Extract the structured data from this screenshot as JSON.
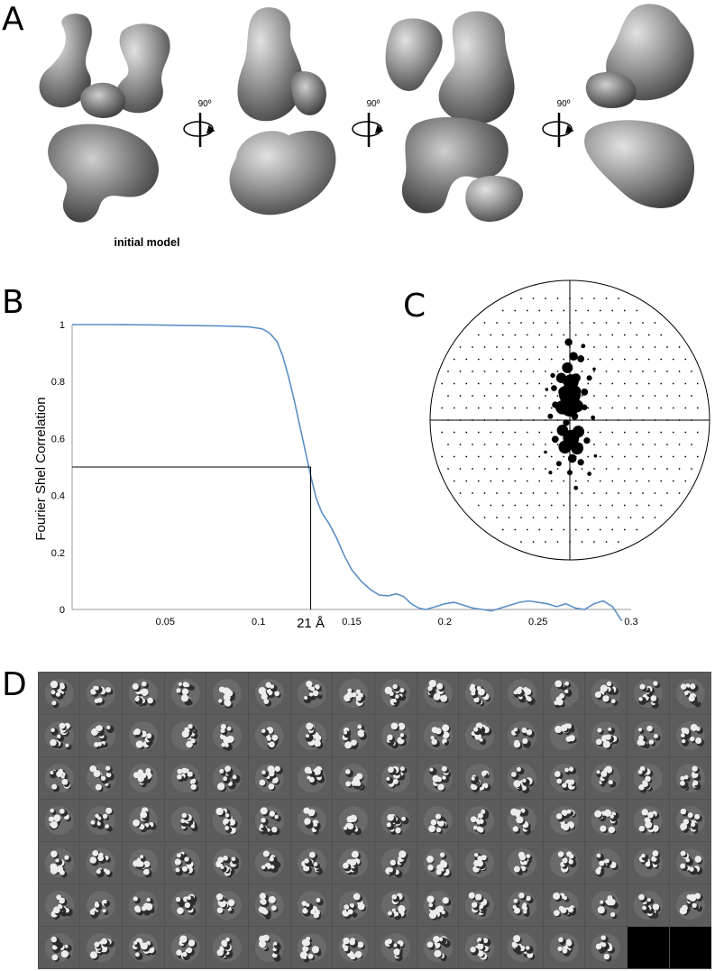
{
  "figure": {
    "panel_labels": [
      "A",
      "B",
      "C",
      "D"
    ],
    "panel_a": {
      "caption": "initial model",
      "rotation_labels": [
        "90º",
        "90º",
        "90º"
      ]
    },
    "panel_d": {
      "rows": 7,
      "columns": 16,
      "filled_in_last_row": 14
    }
  },
  "chart_data": [
    {
      "type": "line",
      "panel": "B",
      "title": "",
      "xlabel": "",
      "ylabel": "Fourier Shel Correlation",
      "xlim": [
        0,
        0.3
      ],
      "ylim": [
        0,
        1
      ],
      "x_ticks": [
        "0.05",
        "0.1",
        "0.15",
        "0.2",
        "0.25",
        "0.3"
      ],
      "y_ticks": [
        "0",
        "0.2",
        "0.4",
        "0.6",
        "0.8",
        "1"
      ],
      "grid": false,
      "color": "#5b8fc7",
      "annotation": {
        "text": "21 Å",
        "x": 0.128,
        "y": 0.5
      },
      "series": [
        {
          "x": [
            0,
            0.02,
            0.04,
            0.06,
            0.08,
            0.095,
            0.102,
            0.106,
            0.11,
            0.113,
            0.116,
            0.119,
            0.122,
            0.125,
            0.128,
            0.131,
            0.134,
            0.138,
            0.142,
            0.146,
            0.15,
            0.155,
            0.16,
            0.165,
            0.17,
            0.174,
            0.178,
            0.182,
            0.186,
            0.19,
            0.195,
            0.2,
            0.205,
            0.21,
            0.215,
            0.22,
            0.225,
            0.23,
            0.235,
            0.24,
            0.245,
            0.25,
            0.255,
            0.26,
            0.265,
            0.27,
            0.275,
            0.28,
            0.285,
            0.29,
            0.295
          ],
          "values": [
            1.0,
            1.0,
            0.999,
            0.997,
            0.995,
            0.992,
            0.985,
            0.97,
            0.94,
            0.89,
            0.82,
            0.74,
            0.65,
            0.56,
            0.47,
            0.39,
            0.34,
            0.3,
            0.25,
            0.19,
            0.14,
            0.1,
            0.07,
            0.05,
            0.048,
            0.055,
            0.045,
            0.02,
            0.005,
            0.0,
            0.01,
            0.02,
            0.025,
            0.015,
            0.005,
            0.0,
            -0.005,
            0.005,
            0.015,
            0.025,
            0.03,
            0.025,
            0.02,
            0.01,
            0.02,
            0.005,
            0.0,
            0.02,
            0.03,
            0.01,
            -0.04
          ]
        }
      ]
    },
    {
      "type": "scatter",
      "panel": "C",
      "title": "",
      "grid": false,
      "note": "angular distribution plot; size = relative number of particles per orientation",
      "points": [
        {
          "x": 0,
          "y": 2,
          "s": 4.0
        },
        {
          "x": 0,
          "y": 1,
          "s": 3.4
        },
        {
          "x": -0.6,
          "y": 1,
          "s": 2.6
        },
        {
          "x": 0.6,
          "y": 1.1,
          "s": 2.3
        },
        {
          "x": -0.5,
          "y": 2.2,
          "s": 2.0
        },
        {
          "x": 0.5,
          "y": 2.3,
          "s": 1.8
        },
        {
          "x": 0.1,
          "y": 3,
          "s": 2.8
        },
        {
          "x": -0.2,
          "y": 4.1,
          "s": 2.0
        },
        {
          "x": 0.5,
          "y": 3.3,
          "s": 1.7
        },
        {
          "x": -0.7,
          "y": 3.3,
          "s": 1.9
        },
        {
          "x": 0.3,
          "y": 5,
          "s": 1.6
        },
        {
          "x": -0.1,
          "y": 6.1,
          "s": 1.4
        },
        {
          "x": 1.2,
          "y": 2.2,
          "s": 1.3
        },
        {
          "x": -1.2,
          "y": 1.2,
          "s": 1.2
        },
        {
          "x": 1.2,
          "y": 1,
          "s": 1.1
        },
        {
          "x": 1.6,
          "y": 3.3,
          "s": 1.0
        },
        {
          "x": 0.9,
          "y": 4.8,
          "s": 1.3
        },
        {
          "x": 1.1,
          "y": 5.8,
          "s": 0.8
        },
        {
          "x": 2,
          "y": 4,
          "s": 0.6
        },
        {
          "x": -1.3,
          "y": 2.5,
          "s": 1.1
        },
        {
          "x": -1.4,
          "y": 3.5,
          "s": 0.9
        },
        {
          "x": -1.9,
          "y": 2.4,
          "s": 0.6
        },
        {
          "x": 0.1,
          "y": -1.4,
          "s": 3.0
        },
        {
          "x": 0.7,
          "y": -0.9,
          "s": 2.2
        },
        {
          "x": -0.6,
          "y": -0.8,
          "s": 2.1
        },
        {
          "x": 0.6,
          "y": -2.2,
          "s": 2.3
        },
        {
          "x": -0.4,
          "y": -2.1,
          "s": 2.4
        },
        {
          "x": 0.2,
          "y": -3,
          "s": 1.6
        },
        {
          "x": -1.2,
          "y": -1.5,
          "s": 1.3
        },
        {
          "x": 1.4,
          "y": -1.6,
          "s": 1.2
        },
        {
          "x": 0.9,
          "y": -3.3,
          "s": 1.2
        },
        {
          "x": -0.9,
          "y": -3.4,
          "s": 1.0
        },
        {
          "x": 0,
          "y": -4.1,
          "s": 1.0
        },
        {
          "x": 1.6,
          "y": -4.2,
          "s": 0.8
        },
        {
          "x": -1.6,
          "y": -4.1,
          "s": 0.7
        },
        {
          "x": 0.5,
          "y": -5.3,
          "s": 0.8
        },
        {
          "x": -2,
          "y": -2.5,
          "s": 0.6
        },
        {
          "x": 2.1,
          "y": -2.8,
          "s": 0.6
        },
        {
          "x": -1.6,
          "y": 0.3,
          "s": 1.0
        },
        {
          "x": 1.9,
          "y": 0.2,
          "s": 0.8
        },
        {
          "x": 0.4,
          "y": 0.3,
          "s": 1.3
        },
        {
          "x": -0.3,
          "y": -0.2,
          "s": 1.2
        }
      ]
    }
  ]
}
